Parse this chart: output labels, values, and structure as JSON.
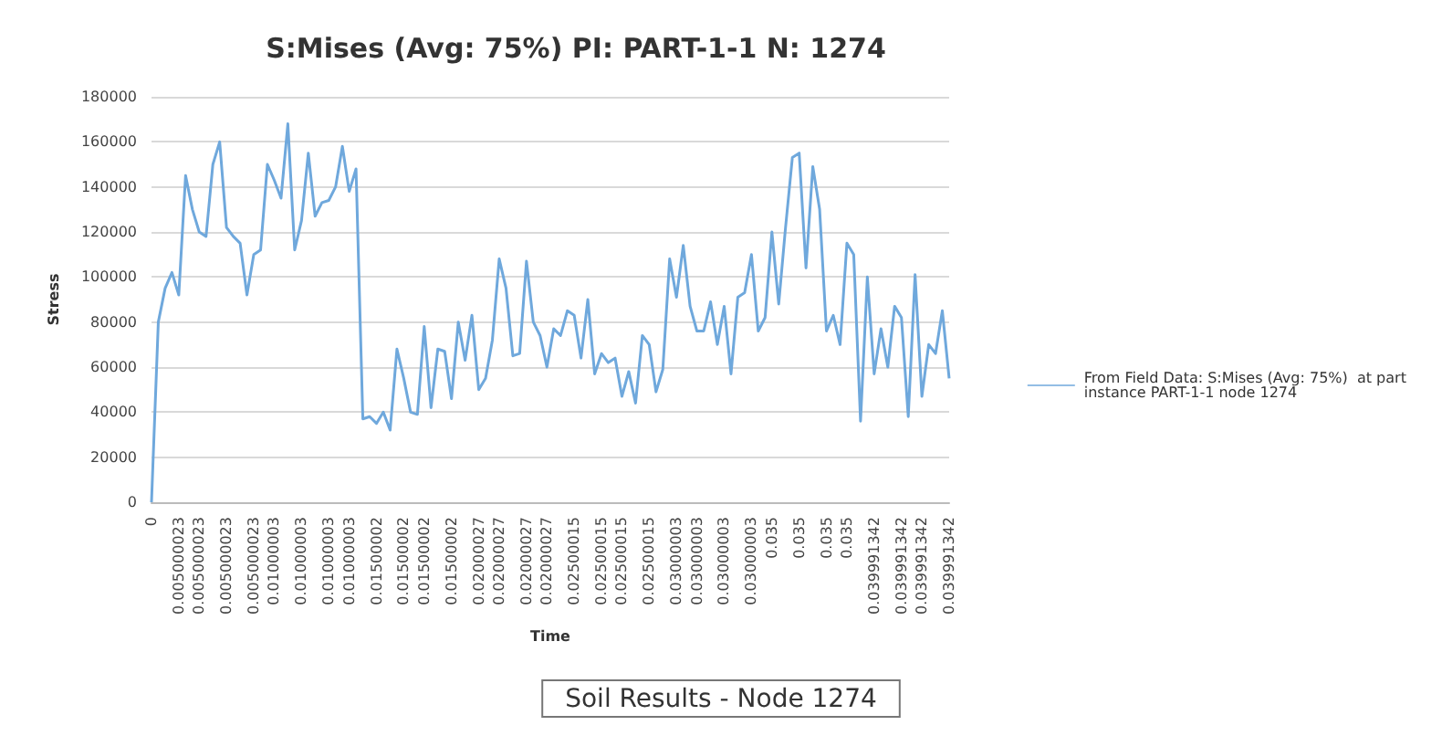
{
  "chart_data": {
    "type": "line",
    "title": "S:Mises (Avg: 75%) PI: PART-1-1 N: 1274",
    "xlabel": "Time",
    "ylabel": "Stress",
    "annotations": [
      "Soil Results - Node 1274"
    ],
    "categories": [
      "0",
      null,
      null,
      null,
      "0.005000023",
      null,
      null,
      "0.005000023",
      null,
      null,
      null,
      "0.005000023",
      null,
      null,
      null,
      "0.005000023",
      null,
      null,
      "0.01000003",
      null,
      null,
      null,
      "0.01000003",
      null,
      null,
      null,
      "0.01000003",
      null,
      null,
      "0.01000003",
      null,
      null,
      null,
      "0.01500002",
      null,
      null,
      null,
      "0.01500002",
      null,
      null,
      "0.01500002",
      null,
      null,
      null,
      "0.01500002",
      null,
      null,
      null,
      "0.02000027",
      null,
      null,
      "0.02000027",
      null,
      null,
      null,
      "0.02000027",
      null,
      null,
      "0.02000027",
      null,
      null,
      null,
      "0.02500015",
      null,
      null,
      null,
      "0.02500015",
      null,
      null,
      "0.02500015",
      null,
      null,
      null,
      "0.02500015",
      null,
      null,
      null,
      "0.03000003",
      null,
      null,
      "0.03000003",
      null,
      null,
      null,
      "0.03000003",
      null,
      null,
      null,
      "0.03000003",
      null,
      null,
      "0.035",
      null,
      null,
      null,
      "0.035",
      null,
      null,
      null,
      "0.035",
      null,
      null,
      "0.035",
      null,
      null,
      null,
      "0.039991342",
      null,
      null,
      null,
      "0.039991342",
      null,
      null,
      "0.039991342",
      null,
      null,
      null,
      "0.039991342"
    ],
    "series": [
      {
        "name": "From Field Data: S:Mises (Avg: 75%)  at part instance PART-1-1 node 1274",
        "color": "#6fa8dc",
        "values": [
          0,
          80000,
          95000,
          102000,
          92000,
          145000,
          130000,
          120000,
          118000,
          150000,
          160000,
          122000,
          118000,
          115000,
          92000,
          110000,
          112000,
          150000,
          143000,
          135000,
          168000,
          112000,
          125000,
          155000,
          127000,
          133000,
          134000,
          140000,
          158000,
          138000,
          148000,
          37000,
          38000,
          35000,
          40000,
          32000,
          68000,
          55000,
          40000,
          39000,
          78000,
          42000,
          68000,
          67000,
          46000,
          80000,
          63000,
          83000,
          50000,
          55000,
          72000,
          108000,
          95000,
          65000,
          66000,
          107000,
          80000,
          74000,
          60000,
          77000,
          74000,
          85000,
          83000,
          64000,
          90000,
          57000,
          66000,
          62000,
          64000,
          47000,
          58000,
          44000,
          74000,
          70000,
          49000,
          59000,
          108000,
          91000,
          114000,
          87000,
          76000,
          76000,
          89000,
          70000,
          87000,
          57000,
          91000,
          93000,
          110000,
          76000,
          82000,
          120000,
          88000,
          122000,
          153000,
          155000,
          104000,
          149000,
          130000,
          76000,
          83000,
          70000,
          115000,
          110000,
          36000,
          100000,
          57000,
          77000,
          60000,
          87000,
          82000,
          38000,
          101000,
          47000,
          70000,
          66000,
          85000,
          55000
        ]
      }
    ],
    "ylim": [
      0,
      180000
    ],
    "yticks": [
      0,
      20000,
      40000,
      60000,
      80000,
      100000,
      120000,
      140000,
      160000,
      180000
    ],
    "grid": "y",
    "legend": "right",
    "marker": "none",
    "line_style": "solid"
  }
}
